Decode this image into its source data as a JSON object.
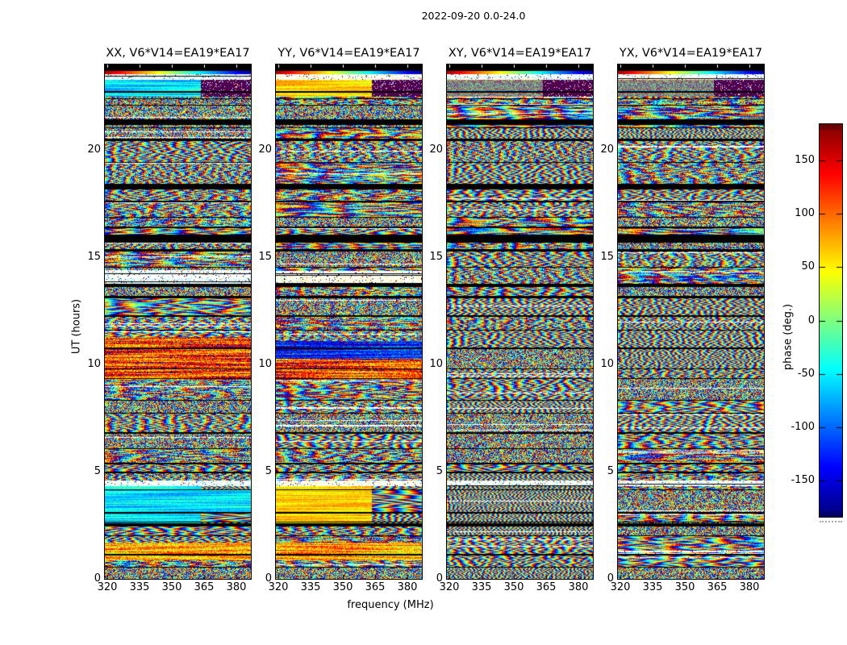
{
  "chart_data": {
    "type": "heatmap",
    "title": "2022-09-20 0.0-24.0",
    "xlabel": "frequency (MHz)",
    "ylabel": "UT (hours)",
    "colorbar_label": "phase (deg.)",
    "colormap": "jet",
    "clim": [
      -184,
      184
    ],
    "xlim": [
      319,
      387
    ],
    "ylim": [
      0,
      24
    ],
    "x_ticks": [
      320,
      335,
      350,
      365,
      380
    ],
    "y_ticks": [
      0,
      5,
      10,
      15,
      20
    ],
    "colorbar_ticks": [
      150,
      100,
      50,
      0,
      -50,
      -100,
      -150
    ],
    "grid": false,
    "legend": false,
    "panels": [
      {
        "label": "XX, V6*V14=EA19*EA17",
        "pol": "XX",
        "texture_seed": 11,
        "striped": false,
        "bright_tint": "cyan",
        "regions": [
          {
            "ut": [
              22.5,
              23.35
            ],
            "kind": "calm-cyan-checker"
          },
          {
            "ut": [
              13.7,
              14.4
            ],
            "kind": "bright-cyan"
          },
          {
            "ut": [
              9.3,
              11.3
            ],
            "kind": "warm"
          },
          {
            "ut": [
              2.6,
              4.35
            ],
            "kind": "calm-cyan"
          },
          {
            "ut": [
              0.9,
              1.7
            ],
            "kind": "warm-yellow"
          }
        ]
      },
      {
        "label": "YY, V6*V14=EA19*EA17",
        "pol": "YY",
        "texture_seed": 22,
        "striped": false,
        "bright_tint": "yellow",
        "regions": [
          {
            "ut": [
              22.5,
              23.35
            ],
            "kind": "calm-yellow-checker"
          },
          {
            "ut": [
              13.7,
              14.4
            ],
            "kind": "bright-yellow"
          },
          {
            "ut": [
              10.3,
              11.1
            ],
            "kind": "cool-blue"
          },
          {
            "ut": [
              9.3,
              10.3
            ],
            "kind": "warm"
          },
          {
            "ut": [
              2.6,
              4.35
            ],
            "kind": "calm-yellow"
          },
          {
            "ut": [
              0.9,
              1.7
            ],
            "kind": "warm-yellow"
          }
        ]
      },
      {
        "label": "XY, V6*V14=EA19*EA17",
        "pol": "XY",
        "texture_seed": 33,
        "striped": true,
        "bright_tint": "cyan",
        "regions": [
          {
            "ut": [
              22.5,
              23.35
            ],
            "kind": "stripes-checker"
          }
        ]
      },
      {
        "label": "YX, V6*V14=EA19*EA17",
        "pol": "YX",
        "texture_seed": 44,
        "striped": true,
        "bright_tint": "cyan",
        "regions": [
          {
            "ut": [
              22.5,
              23.35
            ],
            "kind": "stripes-checker"
          }
        ]
      }
    ],
    "gaps_ut": [
      [
        23.72,
        24.0
      ],
      [
        21.2,
        21.45
      ],
      [
        18.2,
        18.45
      ],
      [
        15.72,
        16.08
      ],
      [
        2.45,
        2.6
      ]
    ],
    "bright_ut": [
      [
        23.3,
        23.55
      ],
      [
        4.35,
        4.62
      ]
    ],
    "rainbow_ut": [
      [
        23.55,
        23.72
      ]
    ]
  }
}
